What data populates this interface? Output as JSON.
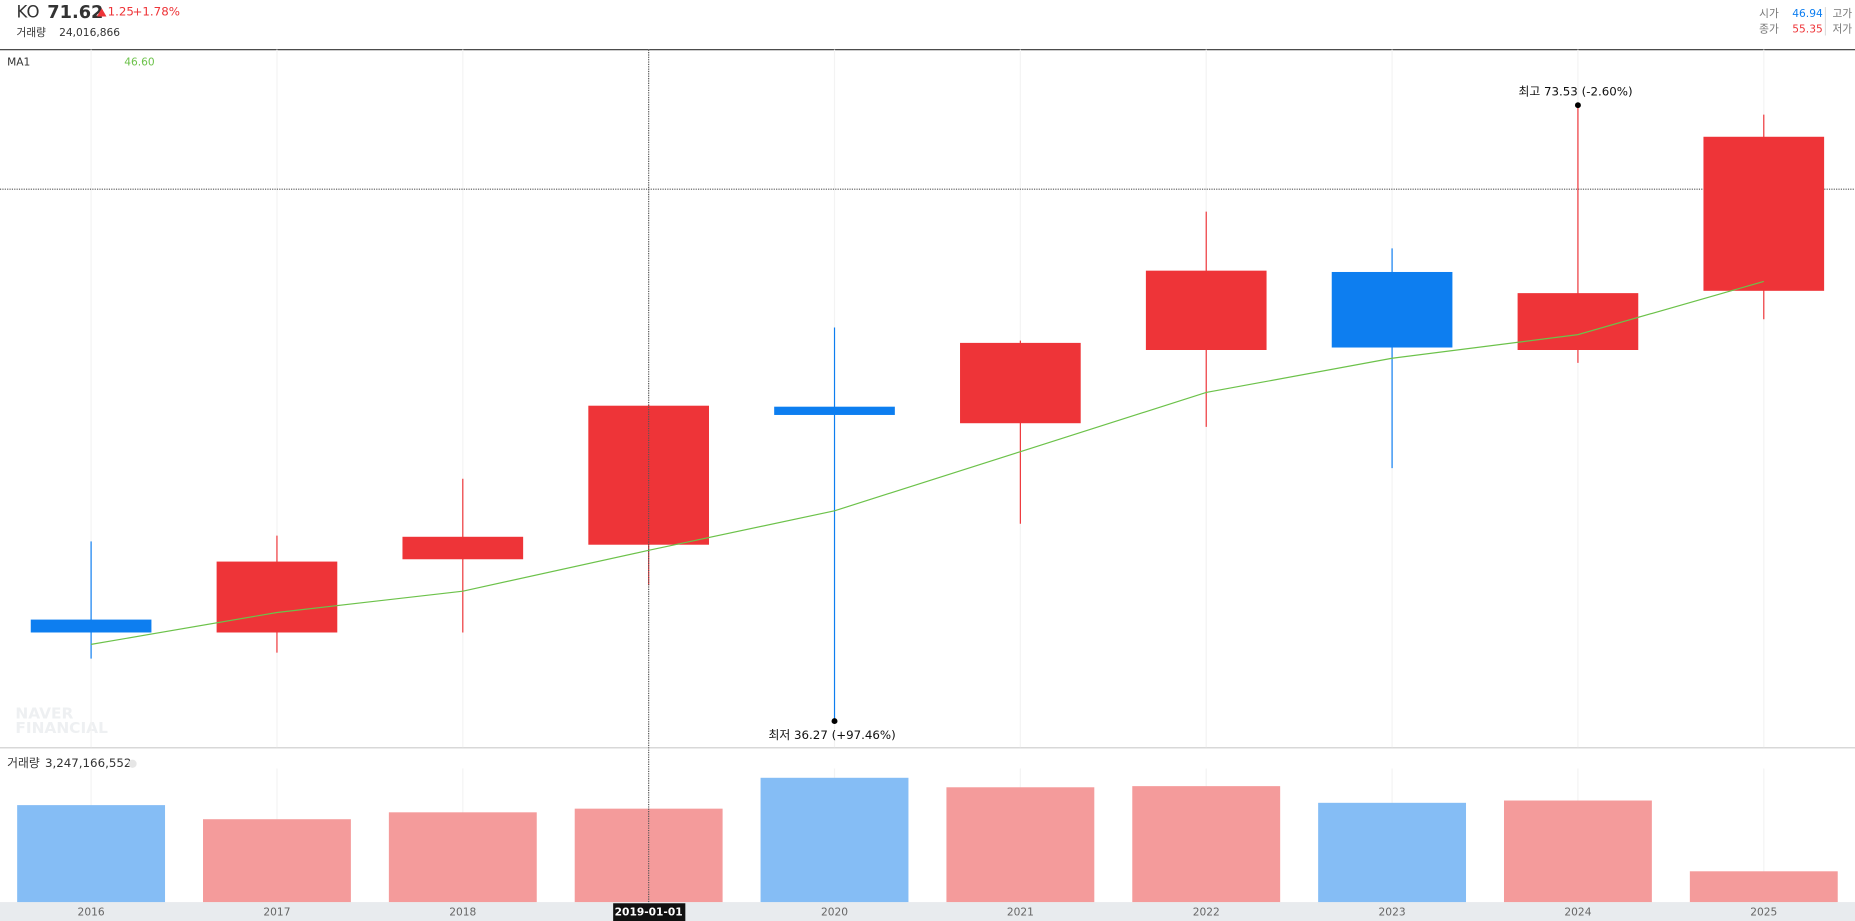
{
  "header": {
    "symbol": "KO",
    "change": "1.25",
    "change_pct": "+1.78%",
    "volume_label": "거래량",
    "volume": "24,016,866",
    "open_label": "시가",
    "close_label": "종가",
    "high_label": "고가",
    "low_label": "저가"
  },
  "chart_data": {
    "type": "candlestick",
    "categories": [
      "2016",
      "2017",
      "2018",
      "2019",
      "2020",
      "2021",
      "2022",
      "2023",
      "2024",
      "2025"
    ],
    "open": [
      42.41,
      41.63,
      46.06,
      46.94,
      55.29,
      54.29,
      58.72,
      63.44,
      58.72,
      62.3
    ],
    "high": [
      47.14,
      47.49,
      50.93,
      55.4,
      60.08,
      59.29,
      67.09,
      64.87,
      73.53,
      72.96
    ],
    "low": [
      40.05,
      40.41,
      41.63,
      44.49,
      36.27,
      48.21,
      54.07,
      51.57,
      57.94,
      60.58
    ],
    "close": [
      41.63,
      45.92,
      47.42,
      55.35,
      54.79,
      59.15,
      63.52,
      58.87,
      62.16,
      71.62
    ],
    "up_color": "#ee3438",
    "down_color": "#0d7ef0",
    "ylim": [
      34.69,
      76.89
    ],
    "ma": {
      "name": "MA1",
      "color": "#6cc24a",
      "values": [
        40.91,
        42.84,
        44.13,
        46.6,
        48.99,
        52.57,
        56.15,
        58.22,
        59.65,
        62.87
      ],
      "value_labels": [
        null,
        null,
        null,
        "46.60",
        null,
        null,
        null,
        null,
        null,
        null
      ]
    },
    "volume": {
      "label": "거래량",
      "values": [
        3370000000,
        2880000000,
        3120000000,
        3247166552,
        4320000000,
        3990000000,
        4030000000,
        3450000000,
        3530000000,
        1070000000
      ],
      "value_labels": [
        null,
        null,
        null,
        "3,247,166,552",
        null,
        null,
        null,
        null,
        null,
        null
      ],
      "ylim": [
        0,
        4520000000
      ],
      "up_color": "#f49b9b",
      "down_color": "#85bdf5"
    },
    "annotations": [
      {
        "text": "최고 73.53 (-2.60%)",
        "category": 8,
        "value": 73.53
      },
      {
        "text": "최저 36.27 (+97.46%)",
        "category": 4,
        "value": 36.27
      }
    ],
    "crosshair": {
      "category": 3,
      "label": "2019-01-01",
      "value": 68.45
    },
    "watermark": [
      "NAVER",
      "FINANCIAL"
    ]
  }
}
